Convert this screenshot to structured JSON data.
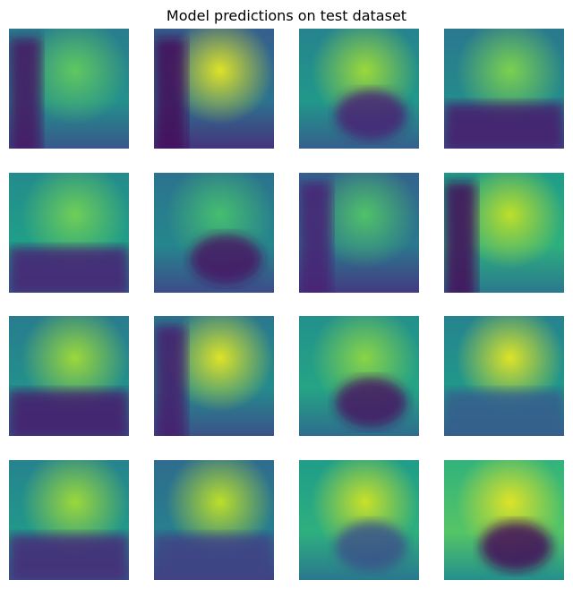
{
  "figure": {
    "title": "Model predictions on test dataset",
    "colormap": "viridis",
    "colormap_stops": [
      "#440154",
      "#482777",
      "#3e4a89",
      "#31688e",
      "#26828e",
      "#1f9e89",
      "#35b779",
      "#6ece58",
      "#b5de2b",
      "#fde725"
    ],
    "rows": 4,
    "cols": 4,
    "panels": [
      {
        "label": "r1c1",
        "base": 0.42,
        "features": [
          {
            "kind": "bright",
            "v": 0.75
          },
          {
            "kind": "dark-left",
            "v": 0.05
          }
        ]
      },
      {
        "label": "r1c2",
        "base": 0.3,
        "features": [
          {
            "kind": "bright",
            "v": 0.95
          },
          {
            "kind": "dark-left",
            "v": 0.02
          }
        ]
      },
      {
        "label": "r1c3",
        "base": 0.45,
        "features": [
          {
            "kind": "bright",
            "v": 0.85
          },
          {
            "kind": "dark-blob",
            "v": 0.1
          }
        ]
      },
      {
        "label": "r1c4",
        "base": 0.4,
        "features": [
          {
            "kind": "bright",
            "v": 0.8
          },
          {
            "kind": "dark-bottom",
            "v": 0.08
          }
        ]
      },
      {
        "label": "r2c1",
        "base": 0.48,
        "features": [
          {
            "kind": "bright",
            "v": 0.78
          },
          {
            "kind": "dark-bottom",
            "v": 0.1
          }
        ]
      },
      {
        "label": "r2c2",
        "base": 0.38,
        "features": [
          {
            "kind": "bright",
            "v": 0.7
          },
          {
            "kind": "dark-blob",
            "v": 0.05
          }
        ]
      },
      {
        "label": "r2c3",
        "base": 0.32,
        "features": [
          {
            "kind": "bright",
            "v": 0.72
          },
          {
            "kind": "dark-left",
            "v": 0.1
          }
        ]
      },
      {
        "label": "r2c4",
        "base": 0.55,
        "features": [
          {
            "kind": "bright",
            "v": 0.9
          },
          {
            "kind": "dark-left",
            "v": 0.02
          }
        ]
      },
      {
        "label": "r3c1",
        "base": 0.42,
        "features": [
          {
            "kind": "bright",
            "v": 0.85
          },
          {
            "kind": "dark-bottom",
            "v": 0.08
          }
        ]
      },
      {
        "label": "r3c2",
        "base": 0.4,
        "features": [
          {
            "kind": "bright",
            "v": 0.95
          },
          {
            "kind": "dark-left",
            "v": 0.08
          }
        ]
      },
      {
        "label": "r3c3",
        "base": 0.5,
        "features": [
          {
            "kind": "bright",
            "v": 0.82
          },
          {
            "kind": "dark-blob",
            "v": 0.05
          }
        ]
      },
      {
        "label": "r3c4",
        "base": 0.45,
        "features": [
          {
            "kind": "bright",
            "v": 0.95
          },
          {
            "kind": "dark-bottom",
            "v": 0.3
          }
        ]
      },
      {
        "label": "r4c1",
        "base": 0.45,
        "features": [
          {
            "kind": "bright",
            "v": 0.85
          },
          {
            "kind": "dark-bottom",
            "v": 0.12
          }
        ]
      },
      {
        "label": "r4c2",
        "base": 0.35,
        "features": [
          {
            "kind": "bright",
            "v": 0.9
          },
          {
            "kind": "dark-bottom",
            "v": 0.2
          }
        ]
      },
      {
        "label": "r4c3",
        "base": 0.55,
        "features": [
          {
            "kind": "bright",
            "v": 0.92
          },
          {
            "kind": "dark-blob",
            "v": 0.25
          }
        ]
      },
      {
        "label": "r4c4",
        "base": 0.65,
        "features": [
          {
            "kind": "bright",
            "v": 0.95
          },
          {
            "kind": "dark-blob",
            "v": 0.02
          }
        ]
      }
    ]
  }
}
